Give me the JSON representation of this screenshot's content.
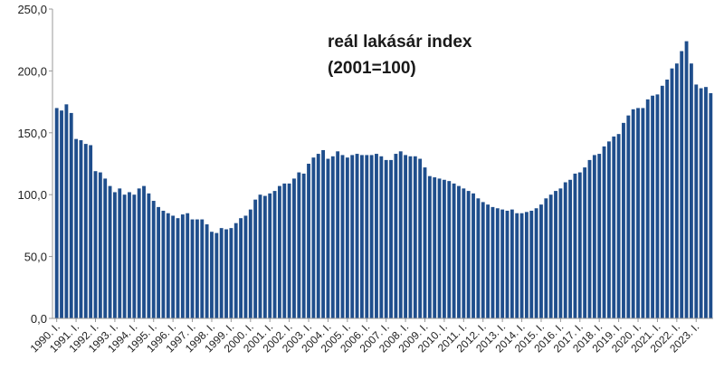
{
  "chart_data": {
    "type": "bar",
    "title_lines": [
      "reál lakásár index",
      "(2001=100)"
    ],
    "xlabel": "",
    "ylabel": "",
    "ylim": [
      0,
      250
    ],
    "yticks": [
      "0,0",
      "50,0",
      "100,0",
      "150,0",
      "200,0",
      "250,0"
    ],
    "grid": false,
    "bar_color": "#1f4e8c",
    "year_labels": [
      "1990. I.",
      "1991. I.",
      "1992. I.",
      "1993. I.",
      "1994. I.",
      "1995. I.",
      "1996. I.",
      "1997. I.",
      "1998. I.",
      "1999. I.",
      "2000. I.",
      "2001. I.",
      "2002. I.",
      "2003. I.",
      "2004. I.",
      "2005. I.",
      "2006. I.",
      "2007. I.",
      "2008. I.",
      "2009. I.",
      "2010. I.",
      "2011. I.",
      "2012. I.",
      "2013. I.",
      "2014. I.",
      "2015. I.",
      "2016. I.",
      "2017. I.",
      "2018. I.",
      "2019. I.",
      "2020. I.",
      "2021. I.",
      "2022. I.",
      "2023. I."
    ],
    "values": [
      170,
      168,
      173,
      166,
      145,
      144,
      141,
      140,
      119,
      118,
      113,
      107,
      102,
      105,
      100,
      102,
      100,
      105,
      107,
      101,
      95,
      90,
      87,
      85,
      83,
      81,
      84,
      85,
      80,
      80,
      80,
      76,
      70,
      69,
      73,
      72,
      73,
      77,
      81,
      83,
      88,
      96,
      100,
      99,
      101,
      103,
      107,
      109,
      109,
      113,
      118,
      117,
      125,
      130,
      133,
      136,
      129,
      131,
      135,
      132,
      130,
      132,
      133,
      132,
      132,
      132,
      133,
      131,
      128,
      128,
      133,
      135,
      132,
      131,
      131,
      129,
      122,
      115,
      114,
      113,
      112,
      111,
      109,
      107,
      105,
      103,
      101,
      97,
      94,
      92,
      90,
      89,
      88,
      87,
      88,
      85,
      85,
      86,
      87,
      89,
      92,
      97,
      100,
      103,
      105,
      110,
      112,
      117,
      118,
      122,
      128,
      132,
      133,
      139,
      143,
      147,
      149,
      158,
      164,
      169,
      170,
      170,
      177,
      180,
      181,
      188,
      193,
      202,
      206,
      216,
      224,
      206,
      189,
      186,
      187,
      182
    ]
  }
}
